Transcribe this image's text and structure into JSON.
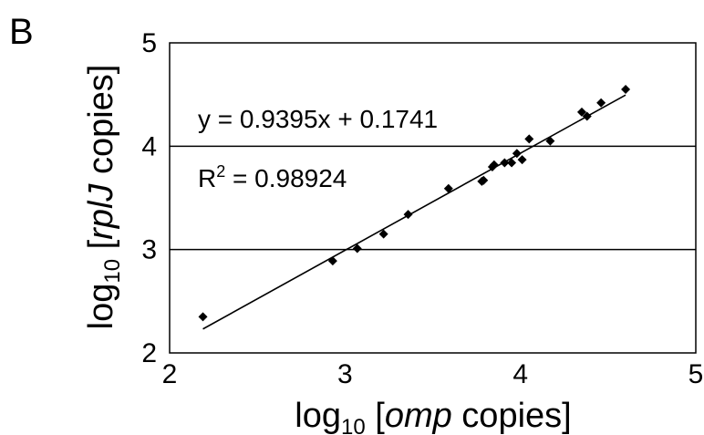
{
  "panel_label": "B",
  "chart_data": {
    "type": "scatter",
    "xlabel": {
      "prefix": "log",
      "sub": "10",
      "bracket_open": " [",
      "italic": "omp",
      "rest": " copies]"
    },
    "ylabel": {
      "prefix": "log",
      "sub": "10",
      "bracket_open": " [",
      "italic": "rplJ",
      "rest": " copies]"
    },
    "xlim": [
      2,
      5
    ],
    "ylim": [
      2,
      5
    ],
    "xticks": [
      "2",
      "3",
      "4",
      "5"
    ],
    "yticks": [
      "2",
      "3",
      "4",
      "5"
    ],
    "grid_y": [
      3,
      4
    ],
    "points": [
      {
        "x": 2.19,
        "y": 2.35
      },
      {
        "x": 2.93,
        "y": 2.89
      },
      {
        "x": 3.07,
        "y": 3.01
      },
      {
        "x": 3.22,
        "y": 3.15
      },
      {
        "x": 3.36,
        "y": 3.34
      },
      {
        "x": 3.59,
        "y": 3.59
      },
      {
        "x": 3.78,
        "y": 3.66
      },
      {
        "x": 3.79,
        "y": 3.67
      },
      {
        "x": 3.84,
        "y": 3.8
      },
      {
        "x": 3.85,
        "y": 3.82
      },
      {
        "x": 3.91,
        "y": 3.84
      },
      {
        "x": 3.95,
        "y": 3.84
      },
      {
        "x": 3.98,
        "y": 3.93
      },
      {
        "x": 4.01,
        "y": 3.87
      },
      {
        "x": 4.05,
        "y": 4.07
      },
      {
        "x": 4.17,
        "y": 4.05
      },
      {
        "x": 4.35,
        "y": 4.33
      },
      {
        "x": 4.38,
        "y": 4.29
      },
      {
        "x": 4.46,
        "y": 4.42
      },
      {
        "x": 4.6,
        "y": 4.55
      }
    ],
    "trendline": {
      "slope": 0.9395,
      "intercept": 0.1741,
      "x_range": [
        2.19,
        4.6
      ]
    },
    "equation_text": "y = 0.9395x + 0.1741",
    "r2_text": {
      "prefix": "R",
      "sup": "2",
      "rest": " = 0.98924"
    },
    "colors": {
      "points": "#000000",
      "line": "#000000",
      "frame": "#000000"
    }
  }
}
